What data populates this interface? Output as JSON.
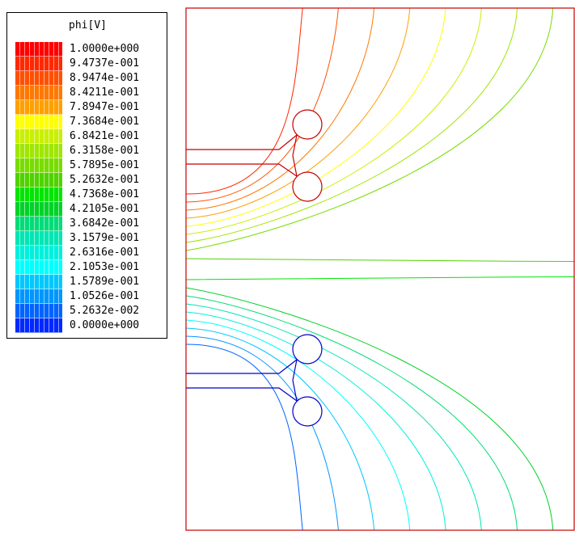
{
  "chart_data": {
    "type": "contour",
    "title": "phi[V]",
    "xlabel": "",
    "ylabel": "",
    "levels": [
      {
        "label": "1.0000e+000",
        "value": 1.0,
        "color": "#ff0000"
      },
      {
        "label": "9.4737e-001",
        "value": 0.94737,
        "color": "#ff2800"
      },
      {
        "label": "8.9474e-001",
        "value": 0.89474,
        "color": "#ff5000"
      },
      {
        "label": "8.4211e-001",
        "value": 0.84211,
        "color": "#ff7800"
      },
      {
        "label": "7.8947e-001",
        "value": 0.78947,
        "color": "#ffa000"
      },
      {
        "label": "7.3684e-001",
        "value": 0.73684,
        "color": "#ffff00"
      },
      {
        "label": "6.8421e-001",
        "value": 0.68421,
        "color": "#c8f000"
      },
      {
        "label": "6.3158e-001",
        "value": 0.63158,
        "color": "#a0e600"
      },
      {
        "label": "5.7895e-001",
        "value": 0.57895,
        "color": "#78dc00"
      },
      {
        "label": "5.2632e-001",
        "value": 0.52632,
        "color": "#50d200"
      },
      {
        "label": "4.7368e-001",
        "value": 0.47368,
        "color": "#00e600"
      },
      {
        "label": "4.2105e-001",
        "value": 0.42105,
        "color": "#00d228"
      },
      {
        "label": "3.6842e-001",
        "value": 0.36842,
        "color": "#00dc78"
      },
      {
        "label": "3.1579e-001",
        "value": 0.31579,
        "color": "#00e6b4"
      },
      {
        "label": "2.6316e-001",
        "value": 0.26316,
        "color": "#00f0dc"
      },
      {
        "label": "2.1053e-001",
        "value": 0.21053,
        "color": "#00ffff"
      },
      {
        "label": "1.5789e-001",
        "value": 0.15789,
        "color": "#00c8ff"
      },
      {
        "label": "1.0526e-001",
        "value": 0.10526,
        "color": "#0096ff"
      },
      {
        "label": "5.2632e-002",
        "value": 0.052632,
        "color": "#0064ff"
      },
      {
        "label": "0.0000e+000",
        "value": 0.0,
        "color": "#0028ff"
      }
    ],
    "electrodes": [
      {
        "name": "high electrode",
        "potential": 1.0,
        "color": "#c80000"
      },
      {
        "name": "low electrode",
        "potential": 0.0,
        "color": "#0000c8"
      }
    ],
    "boundary_color": "#c80000",
    "grid": false
  }
}
